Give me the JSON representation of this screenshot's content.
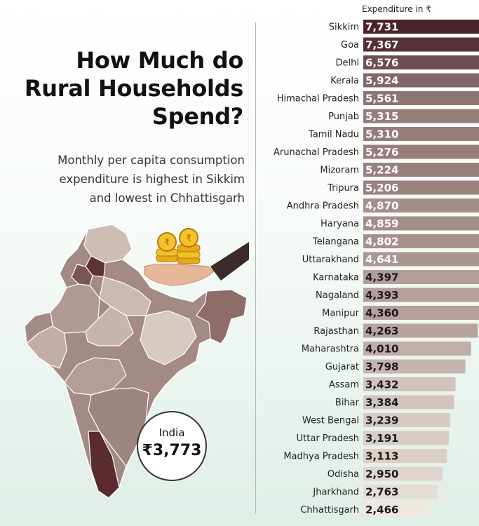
{
  "headline": "How Much do\nRural Households\nSpend?",
  "subhead": "Monthly per capita consumption\nexpenditure is highest in Sikkim\nand lowest in Chhattisgarh",
  "unit_label": "Expenditure in ₹",
  "india": {
    "label": "India",
    "value": "₹3,773"
  },
  "colors": {
    "dark": "#4a2328",
    "mid": "#8e6a66",
    "light": "#c9b8ae",
    "lightest": "#efe7df"
  },
  "chart_data": {
    "type": "bar",
    "orientation": "horizontal",
    "title": "",
    "categories": [
      "Sikkim",
      "Goa",
      "Delhi",
      "Kerala",
      "Himachal Pradesh",
      "Punjab",
      "Tamil Nadu",
      "Arunachal Pradesh",
      "Mizoram",
      "Tripura",
      "Andhra Pradesh",
      "Haryana",
      "Telangana",
      "Uttarakhand",
      "Karnataka",
      "Nagaland",
      "Manipur",
      "Rajasthan",
      "Maharashtra",
      "Gujarat",
      "Assam",
      "Bihar",
      "West Bengal",
      "Uttar Pradesh",
      "Madhya Pradesh",
      "Odisha",
      "Jharkhand",
      "Chhattisgarh"
    ],
    "values": [
      7731,
      7367,
      6576,
      5924,
      5561,
      5315,
      5310,
      5276,
      5224,
      5206,
      4870,
      4859,
      4802,
      4641,
      4397,
      4393,
      4360,
      4263,
      4010,
      3798,
      3432,
      3384,
      3239,
      3191,
      3113,
      2950,
      2763,
      2466
    ],
    "value_labels": [
      "7,731",
      "7,367",
      "6,576",
      "5,924",
      "5,561",
      "5,315",
      "5,310",
      "5,276",
      "5,224",
      "5,206",
      "4,870",
      "4,859",
      "4,802",
      "4,641",
      "4,397",
      "4,393",
      "4,360",
      "4,263",
      "4,010",
      "3,798",
      "3,432",
      "3,384",
      "3,239",
      "3,191",
      "3,113",
      "2,950",
      "2,763",
      "2,466"
    ]
  }
}
